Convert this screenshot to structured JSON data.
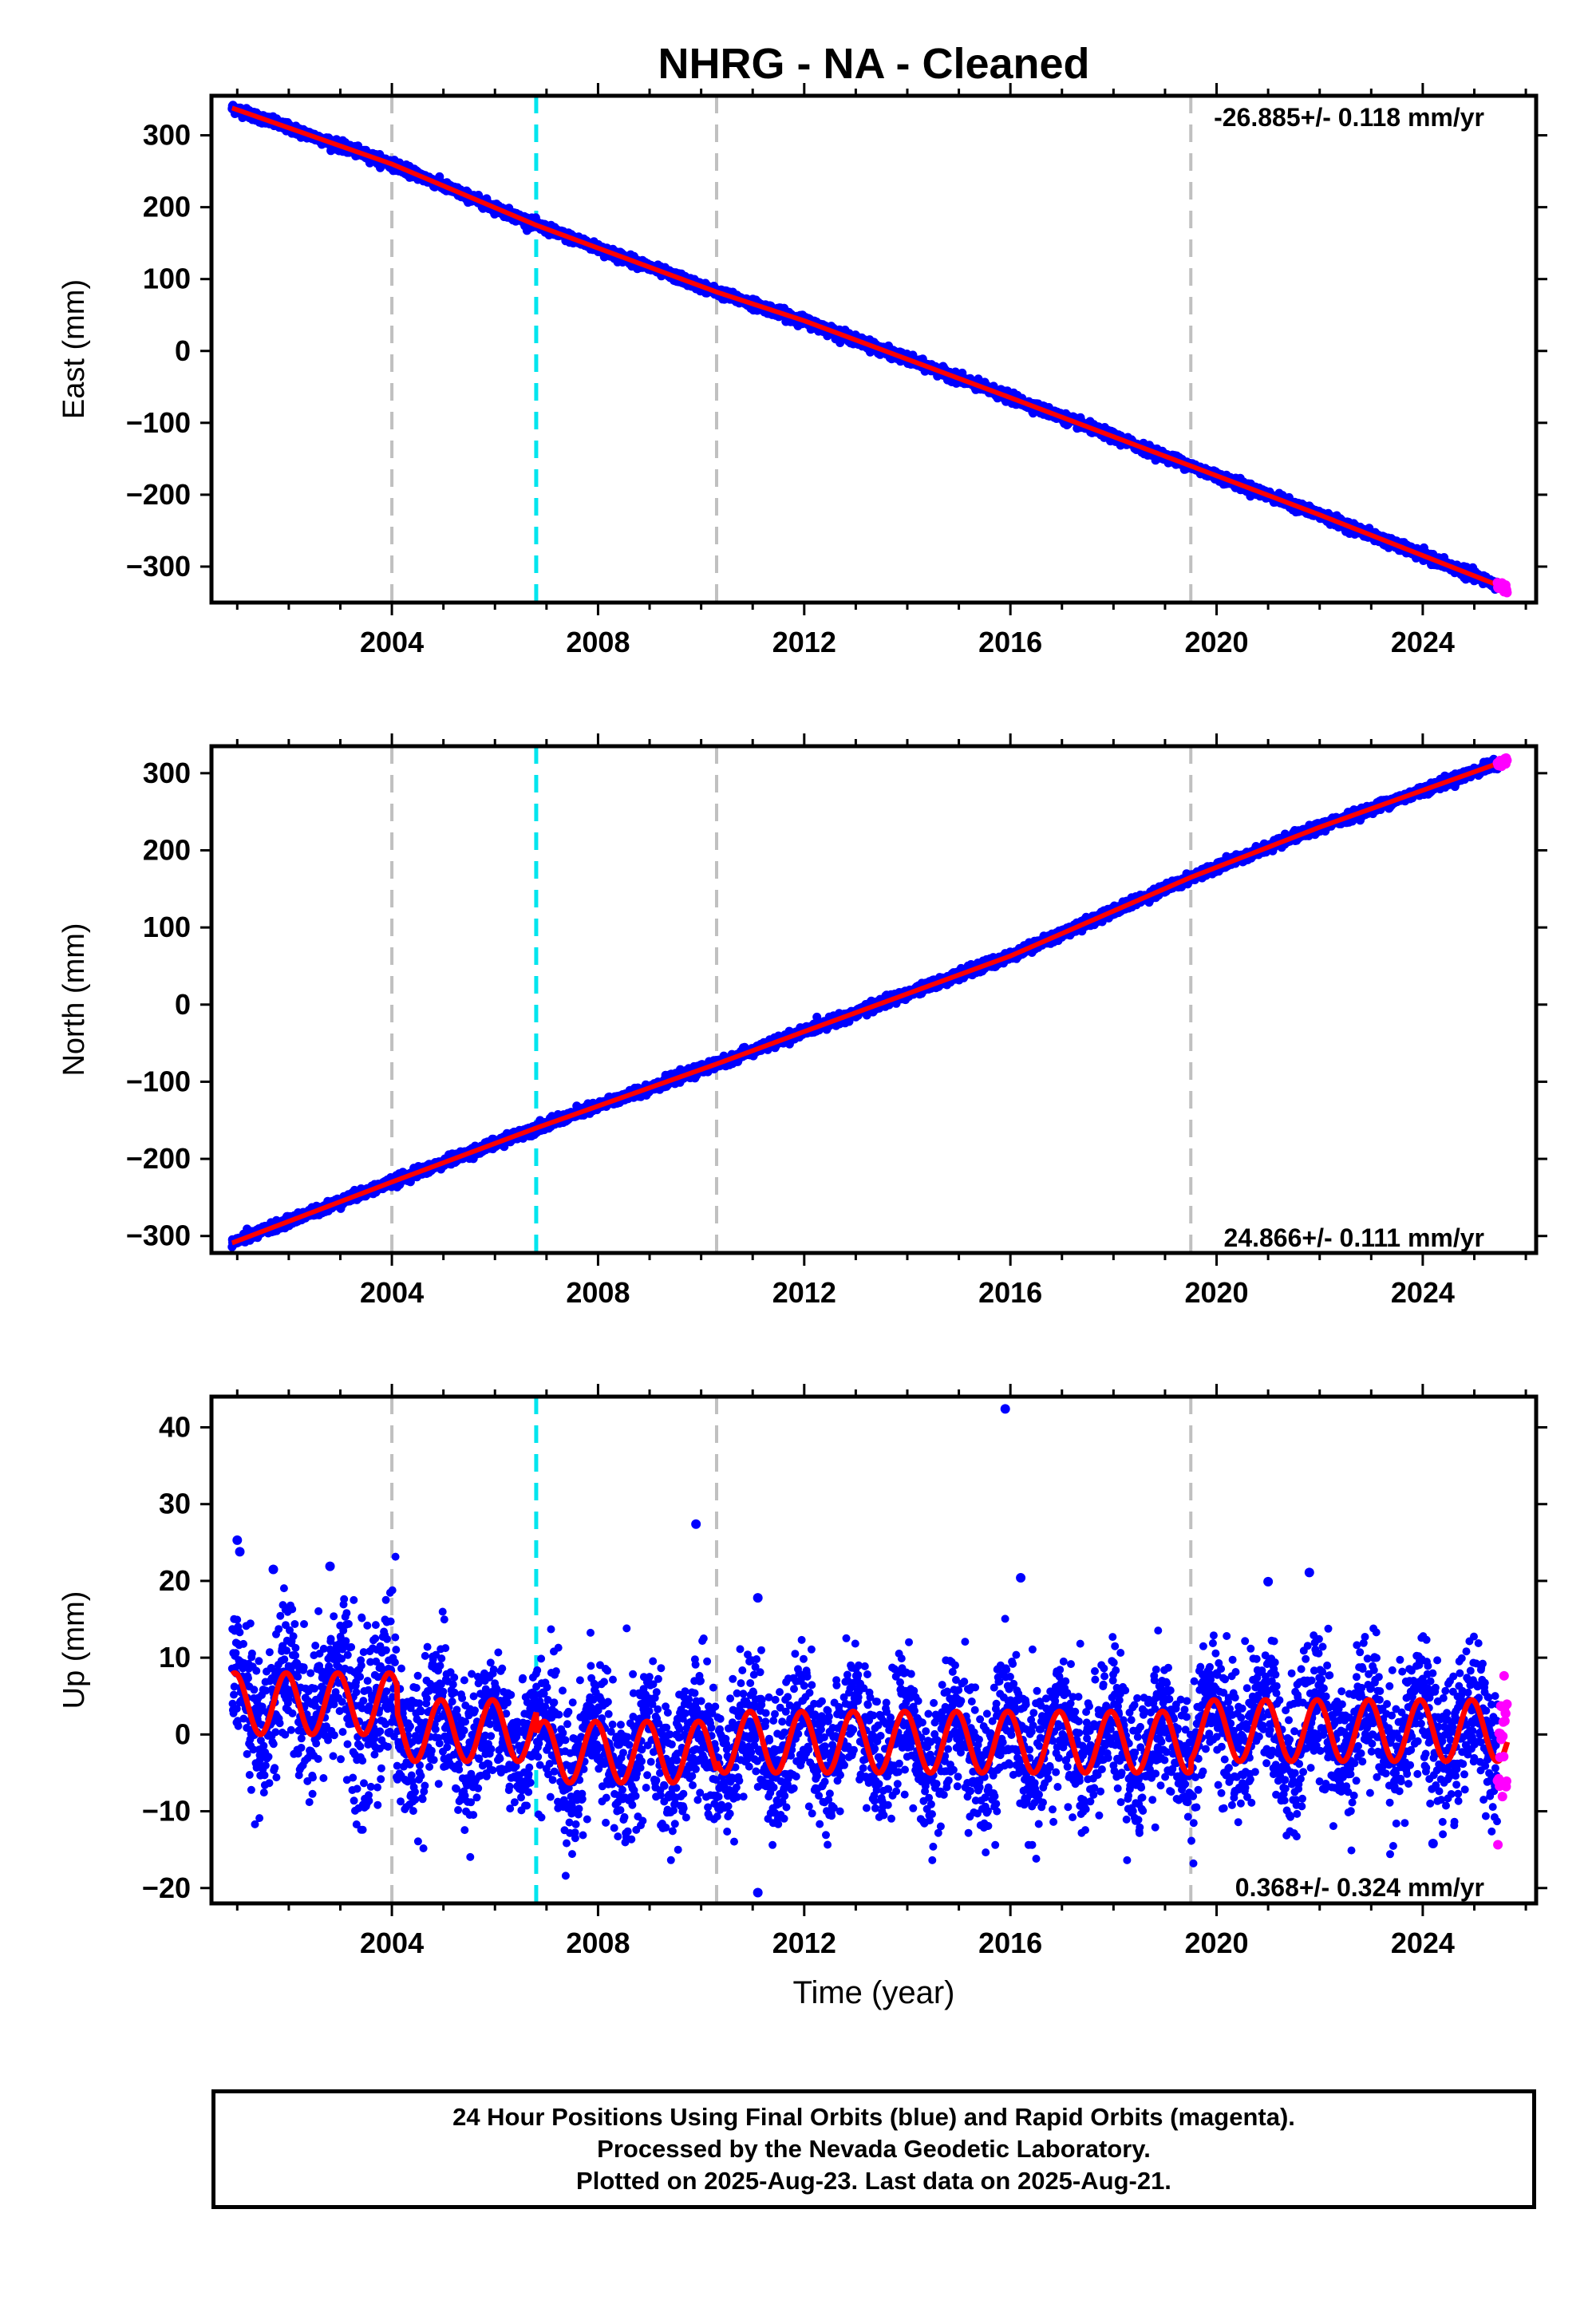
{
  "title": "NHRG  - NA - Cleaned",
  "caption": [
    "24 Hour Positions Using Final Orbits (blue) and Rapid Orbits (magenta).",
    "Processed by the Nevada Geodetic Laboratory.",
    "Plotted on 2025-Aug-23. Last data on 2025-Aug-21."
  ],
  "colors": {
    "final_orbits": "#0000ff",
    "rapid_orbits": "#ff00ff",
    "model_fit": "#ff0000",
    "event_line": "#c0c0c0",
    "equipment_change_line": "#00e5ee"
  },
  "chart_data": [
    {
      "type": "scatter",
      "panel": "east",
      "ylabel": "East (mm)",
      "xlabel": "",
      "rate_label": "-26.885+/- 0.118 mm/yr",
      "xlim": [
        2000.5,
        2026.2
      ],
      "ylim": [
        -350,
        355
      ],
      "x_ticks": [
        2004,
        2008,
        2012,
        2016,
        2020,
        2024
      ],
      "y_ticks": [
        -300,
        -200,
        -100,
        0,
        100,
        200,
        300
      ],
      "vertical_lines": [
        {
          "x": 2004.0,
          "kind": "event"
        },
        {
          "x": 2006.8,
          "kind": "equipment_change"
        },
        {
          "x": 2010.3,
          "kind": "event"
        },
        {
          "x": 2019.5,
          "kind": "event"
        }
      ],
      "series": [
        {
          "name": "Final Orbits (blue)",
          "color": "#0000ff",
          "x_start": 2000.9,
          "x_end": 2025.45,
          "y_start": 338,
          "y_end": -322,
          "noise_mm": 3.2
        },
        {
          "name": "Rapid Orbits (magenta)",
          "color": "#ff00ff",
          "x_start": 2025.45,
          "x_end": 2025.64,
          "y_start": -325,
          "y_end": -331,
          "noise_mm": 2.5
        },
        {
          "name": "model",
          "color": "#ff0000",
          "x": [
            2000.9,
            2004.0,
            2006.8,
            2010.3,
            2012.0,
            2016.0,
            2019.5,
            2022.0,
            2025.64
          ],
          "y": [
            338,
            260,
            175,
            82,
            42,
            -65,
            -160,
            -228,
            -331
          ]
        }
      ]
    },
    {
      "type": "scatter",
      "panel": "north",
      "ylabel": "North (mm)",
      "xlabel": "",
      "rate_label": "24.866+/- 0.111 mm/yr",
      "xlim": [
        2000.5,
        2026.2
      ],
      "ylim": [
        -322,
        335
      ],
      "x_ticks": [
        2004,
        2008,
        2012,
        2016,
        2020,
        2024
      ],
      "y_ticks": [
        -300,
        -200,
        -100,
        0,
        100,
        200,
        300
      ],
      "vertical_lines": [
        {
          "x": 2004.0,
          "kind": "event"
        },
        {
          "x": 2006.8,
          "kind": "equipment_change"
        },
        {
          "x": 2010.3,
          "kind": "event"
        },
        {
          "x": 2019.5,
          "kind": "event"
        }
      ],
      "series": [
        {
          "name": "Final Orbits (blue)",
          "color": "#0000ff",
          "x_start": 2000.9,
          "x_end": 2025.45,
          "y_start": -309,
          "y_end": 305,
          "noise_mm": 3.0
        },
        {
          "name": "Rapid Orbits (magenta)",
          "color": "#ff00ff",
          "x_start": 2025.45,
          "x_end": 2025.64,
          "y_start": 308,
          "y_end": 317,
          "noise_mm": 2.0
        },
        {
          "name": "model",
          "color": "#ff0000",
          "x": [
            2000.9,
            2004.0,
            2006.8,
            2010.3,
            2012.0,
            2016.0,
            2019.5,
            2022.0,
            2025.64
          ],
          "y": [
            -309,
            -230,
            -160,
            -77,
            -35,
            63,
            165,
            230,
            317
          ]
        }
      ]
    },
    {
      "type": "scatter",
      "panel": "up",
      "ylabel": "Up (mm)",
      "xlabel": "Time (year)",
      "rate_label": "0.368+/- 0.324 mm/yr",
      "xlim": [
        2000.5,
        2026.2
      ],
      "ylim": [
        -22,
        44
      ],
      "x_ticks": [
        2004,
        2008,
        2012,
        2016,
        2020,
        2024
      ],
      "y_ticks": [
        -20,
        -10,
        0,
        10,
        20,
        30,
        40
      ],
      "vertical_lines": [
        {
          "x": 2004.0,
          "kind": "event"
        },
        {
          "x": 2006.8,
          "kind": "equipment_change"
        },
        {
          "x": 2010.3,
          "kind": "event"
        },
        {
          "x": 2019.5,
          "kind": "event"
        }
      ],
      "series": [
        {
          "name": "Final Orbits (blue)",
          "color": "#0000ff",
          "x_start": 2000.9,
          "x_end": 2025.45,
          "noise_mm": 4.5
        },
        {
          "name": "Rapid Orbits (magenta)",
          "color": "#ff00ff",
          "x_start": 2025.45,
          "x_end": 2025.64,
          "noise_mm": 4.0
        },
        {
          "name": "model",
          "color": "#ff0000",
          "seasonal_amplitude_mm": 4.0,
          "offsets": [
            {
              "x_start": 2000.9,
              "x_end": 2004.1,
              "mean_mm": 4.0
            },
            {
              "x_start": 2004.1,
              "x_end": 2006.8,
              "mean_mm": 0.5
            },
            {
              "x_start": 2006.8,
              "x_end": 2010.3,
              "mean_mm": -2.3
            },
            {
              "x_start": 2010.3,
              "x_end": 2019.5,
              "mean_mm": -1.0
            },
            {
              "x_start": 2019.5,
              "x_end": 2025.64,
              "mean_mm": 0.5
            }
          ]
        },
        {
          "name": "outliers",
          "color": "#0000ff",
          "x": [
            2001.0,
            2001.05,
            2001.7,
            2002.8,
            2009.9,
            2011.1,
            2015.9,
            2016.2,
            2021.8,
            2021.0,
            2011.1,
            2024.2
          ],
          "y": [
            25.3,
            23.8,
            21.5,
            21.9,
            27.4,
            17.8,
            42.4,
            20.4,
            21.1,
            19.9,
            -20.6,
            -14.2
          ]
        }
      ]
    }
  ]
}
